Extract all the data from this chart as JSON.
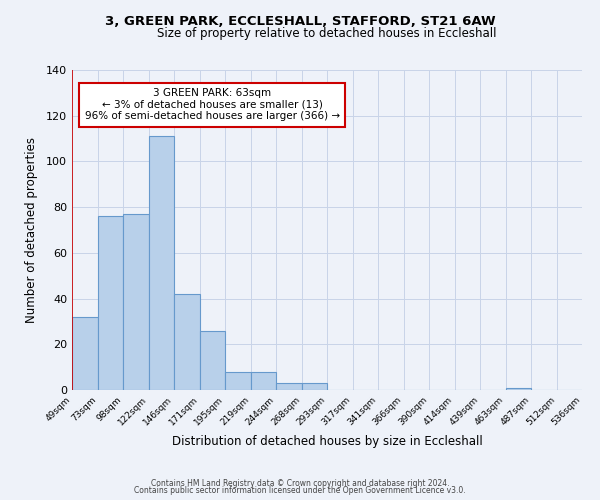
{
  "title": "3, GREEN PARK, ECCLESHALL, STAFFORD, ST21 6AW",
  "subtitle": "Size of property relative to detached houses in Eccleshall",
  "xlabel": "Distribution of detached houses by size in Eccleshall",
  "ylabel": "Number of detached properties",
  "bar_heights": [
    32,
    76,
    77,
    111,
    42,
    26,
    8,
    8,
    3,
    3,
    0,
    0,
    0,
    0,
    0,
    0,
    0,
    1,
    0,
    0
  ],
  "bar_labels": [
    "49sqm",
    "73sqm",
    "98sqm",
    "122sqm",
    "146sqm",
    "171sqm",
    "195sqm",
    "219sqm",
    "244sqm",
    "268sqm",
    "293sqm",
    "317sqm",
    "341sqm",
    "366sqm",
    "390sqm",
    "414sqm",
    "439sqm",
    "463sqm",
    "487sqm",
    "512sqm",
    "536sqm"
  ],
  "bar_color": "#b8d0ea",
  "bar_edge_color": "#6699cc",
  "annotation_text_line1": "3 GREEN PARK: 63sqm",
  "annotation_text_line2": "← 3% of detached houses are smaller (13)",
  "annotation_text_line3": "96% of semi-detached houses are larger (366) →",
  "annotation_box_edge_color": "#cc0000",
  "vline_color": "#cc0000",
  "ylim": [
    0,
    140
  ],
  "yticks": [
    0,
    20,
    40,
    60,
    80,
    100,
    120,
    140
  ],
  "footer_line1": "Contains HM Land Registry data © Crown copyright and database right 2024.",
  "footer_line2": "Contains public sector information licensed under the Open Government Licence v3.0.",
  "background_color": "#eef2f9",
  "grid_color": "#c8d4e8"
}
